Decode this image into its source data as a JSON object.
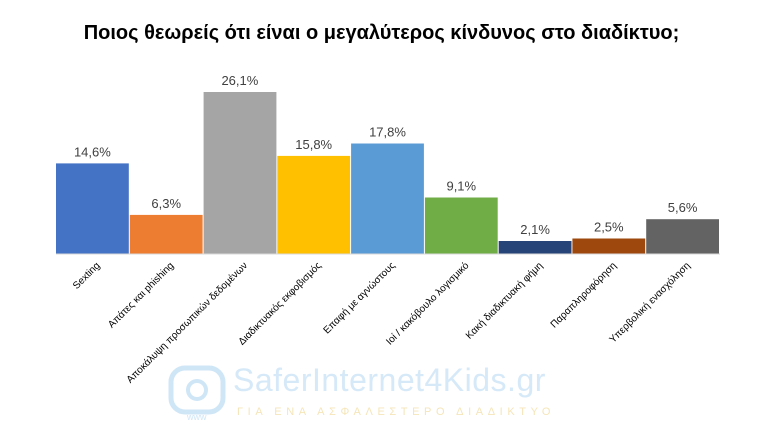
{
  "chart_data": {
    "type": "bar",
    "title": "Ποιος θεωρείς ότι είναι ο μεγαλύτερος κίνδυνος στο διαδίκτυο;",
    "categories": [
      "Sexting",
      "Απάτες και phishing",
      "Αποκάλυψη προσωπικών δεδομένων",
      "Διαδικτυακός εκφοβισμός",
      "Επαφή με αγνώστους",
      "Ιοί / κακόβουλο λογισμικό",
      "Κακή διαδικτυακή φήμη",
      "Παραπληροφόρηση",
      "Υπερβολική ενασχόληση"
    ],
    "values": [
      14.6,
      6.3,
      26.1,
      15.8,
      17.8,
      9.1,
      2.1,
      2.5,
      5.6
    ],
    "value_labels": [
      "14,6%",
      "6,3%",
      "26,1%",
      "15,8%",
      "17,8%",
      "9,1%",
      "2,1%",
      "2,5%",
      "5,6%"
    ],
    "colors": [
      "#4472c4",
      "#ed7d31",
      "#a5a5a5",
      "#ffc000",
      "#5b9bd5",
      "#70ad47",
      "#264478",
      "#9e480e",
      "#636363"
    ],
    "ylim": [
      0,
      26.1
    ],
    "grid": false,
    "legend": "none"
  },
  "watermark": {
    "brand": "SaferInternet4Kids.gr",
    "tagline": "ΓΙΑ ΕΝΑ ΑΣΦΑΛΕΣΤΕΡΟ ΔΙΑΔΙΚΤΥΟ",
    "logo_text": "www",
    "colors": {
      "brand": "#d6e9f8",
      "tagline": "#f5e5b8",
      "logo": "#cfe6f7"
    }
  }
}
